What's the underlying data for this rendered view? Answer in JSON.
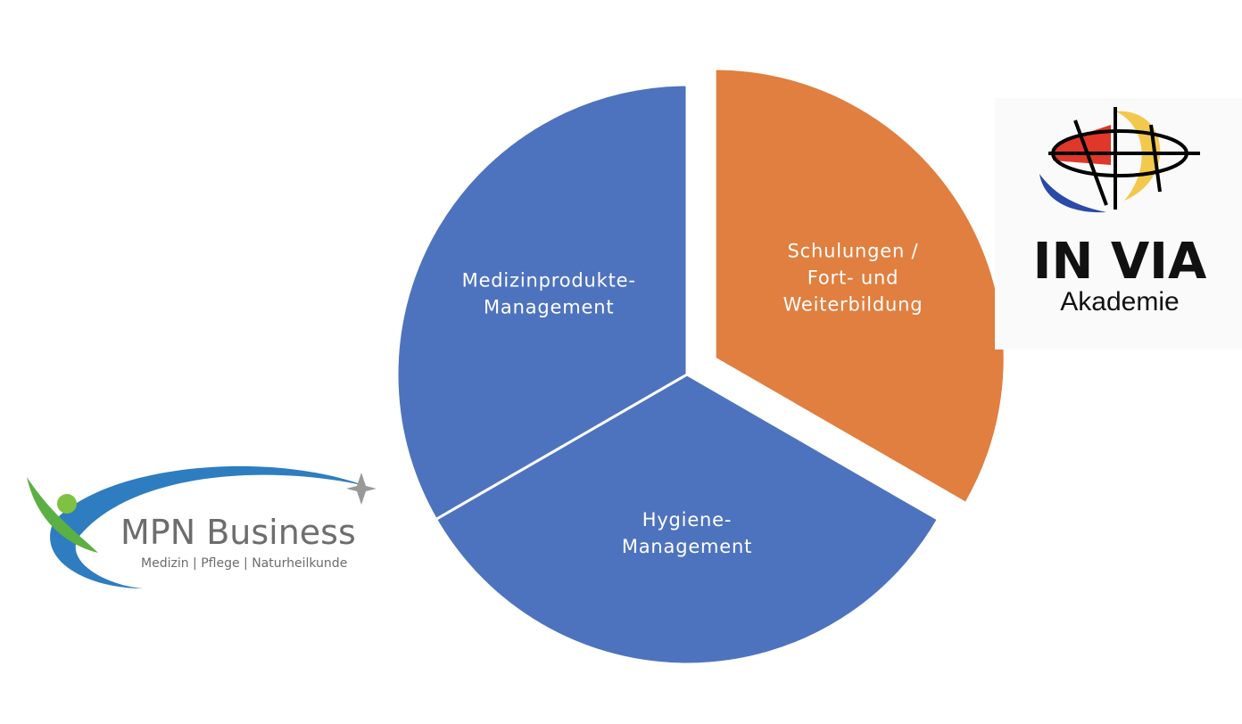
{
  "chart_data": {
    "type": "pie",
    "categories": [
      [
        "Schulungen /",
        "Fort- und",
        "Weiterbildung"
      ],
      [
        "Hygiene-",
        "Management"
      ],
      [
        "Medizinprodukte-",
        "Management"
      ]
    ],
    "values": [
      33.3,
      33.3,
      33.3
    ],
    "colors": [
      "#e07f3f",
      "#4e73be",
      "#4e73be"
    ],
    "explode": [
      true,
      false,
      false
    ]
  },
  "logos": {
    "mpn": {
      "name": "MPN Business",
      "tagline": "Medizin | Pflege | Naturheilkunde"
    },
    "invia": {
      "name": "IN VIA",
      "subtitle": "Akademie"
    }
  }
}
